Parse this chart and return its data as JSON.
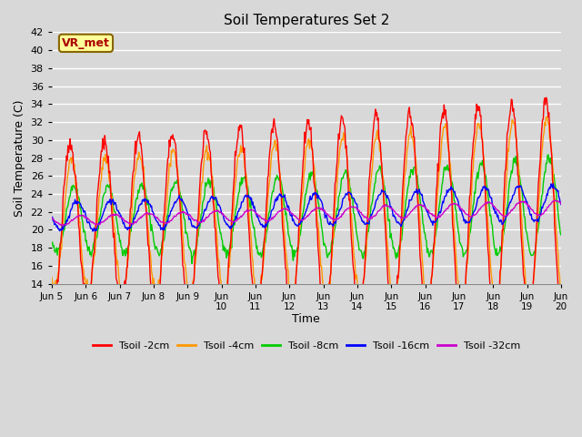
{
  "title": "Soil Temperatures Set 2",
  "xlabel": "Time",
  "ylabel": "Soil Temperature (C)",
  "ylim": [
    14,
    42
  ],
  "yticks": [
    14,
    16,
    18,
    20,
    22,
    24,
    26,
    28,
    30,
    32,
    34,
    36,
    38,
    40,
    42
  ],
  "annotation_text": "VR_met",
  "colors": {
    "2cm": "#ff0000",
    "4cm": "#ff9900",
    "8cm": "#00cc00",
    "16cm": "#0000ff",
    "32cm": "#cc00cc"
  },
  "legend_labels": [
    "Tsoil -2cm",
    "Tsoil -4cm",
    "Tsoil -8cm",
    "Tsoil -16cm",
    "Tsoil -32cm"
  ],
  "background_color": "#d8d8d8",
  "plot_bg_color": "#d8d8d8",
  "grid_color": "#ffffff",
  "num_days": 15,
  "start_day": 5,
  "xtick_labels": [
    "Jun 5",
    "Jun 6",
    "Jun 7",
    "Jun 8",
    "Jun 9",
    "Jun\n10",
    "Jun\n11",
    "Jun\n12",
    "Jun\n13",
    "Jun\n14",
    "Jun\n15",
    "Jun\n16",
    "Jun\n17",
    "Jun\n18",
    "Jun\n19",
    "Jun\n20"
  ]
}
